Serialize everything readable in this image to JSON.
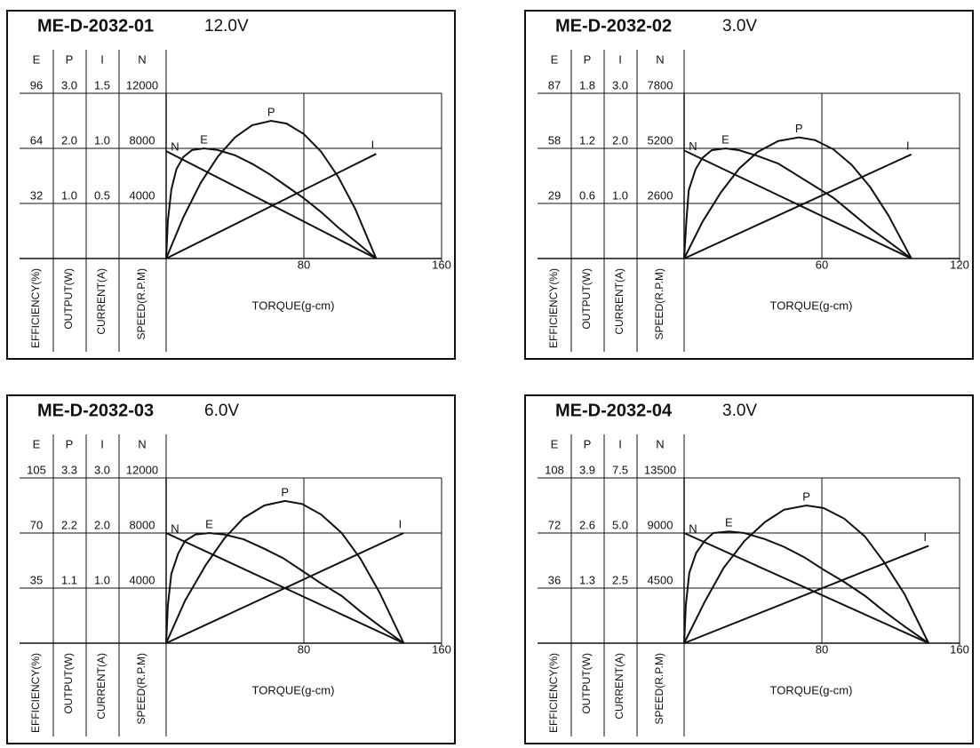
{
  "chart_data": [
    {
      "type": "line",
      "title": "ME-D-2032-01",
      "subtitle": "12.0V",
      "axes": [
        {
          "name": "E",
          "label": "EFFICIENCY(%)",
          "ylim": [
            0,
            96
          ],
          "yticks": [
            32,
            64,
            96
          ]
        },
        {
          "name": "P",
          "label": "OUTPUT(W)",
          "ylim": [
            0,
            3
          ],
          "yticks": [
            {
              "value": 1,
              "label": "1.0"
            },
            {
              "value": 2,
              "label": "2.0"
            },
            {
              "value": 3,
              "label": "3.0"
            }
          ]
        },
        {
          "name": "I",
          "label": "CURRENT(A)",
          "ylim": [
            0,
            1.5
          ],
          "yticks": [
            0.5,
            {
              "value": 1,
              "label": "1.0"
            },
            1.5
          ]
        },
        {
          "name": "N",
          "label": "SPEED(R.P.M)",
          "ylim": [
            0,
            12000
          ],
          "yticks": [
            4000,
            8000,
            12000
          ]
        }
      ],
      "xlim": [
        0,
        160
      ],
      "xticks": [
        80,
        160
      ],
      "xlabel": "TORQUE(g-cm)",
      "grid": true,
      "series": [
        {
          "name": "N",
          "color": "#111111",
          "x": [
            0,
            122
          ],
          "values": [
            7800,
            0
          ]
        },
        {
          "name": "E",
          "color": "#111111",
          "x": [
            0,
            1,
            3,
            6,
            10,
            15,
            22,
            30,
            40,
            50,
            60,
            70,
            80,
            90,
            100,
            110,
            122
          ],
          "values": [
            0,
            22,
            40,
            52,
            59,
            63,
            64,
            63,
            60,
            55,
            49,
            42,
            35,
            27,
            18,
            10,
            0
          ]
        },
        {
          "name": "P",
          "color": "#111111",
          "x": [
            0,
            10,
            20,
            30,
            40,
            50,
            61,
            70,
            80,
            90,
            100,
            110,
            122
          ],
          "values": [
            0,
            0.75,
            1.37,
            1.85,
            2.2,
            2.42,
            2.5,
            2.45,
            2.26,
            1.94,
            1.48,
            0.89,
            0
          ]
        },
        {
          "name": "I",
          "color": "#111111",
          "x": [
            0,
            122
          ],
          "values": [
            0,
            0.95
          ]
        }
      ]
    },
    {
      "type": "line",
      "title": "ME-D-2032-02",
      "subtitle": "3.0V",
      "axes": [
        {
          "name": "E",
          "label": "EFFICIENCY(%)",
          "ylim": [
            0,
            87
          ],
          "yticks": [
            29,
            58,
            87
          ]
        },
        {
          "name": "P",
          "label": "OUTPUT(W)",
          "ylim": [
            0,
            1.8
          ],
          "yticks": [
            0.6,
            1.2,
            1.8
          ]
        },
        {
          "name": "I",
          "label": "CURRENT(A)",
          "ylim": [
            0,
            3
          ],
          "yticks": [
            {
              "value": 1,
              "label": "1.0"
            },
            {
              "value": 2,
              "label": "2.0"
            },
            {
              "value": 3,
              "label": "3.0"
            }
          ]
        },
        {
          "name": "N",
          "label": "SPEED(R.P.M)",
          "ylim": [
            0,
            7800
          ],
          "yticks": [
            2600,
            5200,
            7800
          ]
        }
      ],
      "xlim": [
        0,
        120
      ],
      "xticks": [
        60,
        120
      ],
      "xlabel": "TORQUE(g-cm)",
      "grid": true,
      "series": [
        {
          "name": "N",
          "color": "#111111",
          "x": [
            0,
            99
          ],
          "values": [
            5100,
            0
          ]
        },
        {
          "name": "E",
          "color": "#111111",
          "x": [
            0,
            1,
            2,
            5,
            8,
            12,
            18,
            24,
            32,
            41,
            49,
            57,
            65,
            73,
            81,
            89,
            99
          ],
          "values": [
            0,
            20,
            36,
            47,
            53,
            57,
            58,
            57,
            54,
            50,
            44,
            38,
            32,
            24,
            16,
            9,
            0
          ]
        },
        {
          "name": "P",
          "color": "#111111",
          "x": [
            0,
            8,
            16,
            24,
            32,
            41,
            50,
            57,
            65,
            73,
            81,
            89,
            99
          ],
          "values": [
            0,
            0.4,
            0.72,
            0.98,
            1.16,
            1.28,
            1.32,
            1.29,
            1.19,
            1.02,
            0.78,
            0.47,
            0
          ]
        },
        {
          "name": "I",
          "color": "#111111",
          "x": [
            0,
            99
          ],
          "values": [
            0,
            1.89
          ]
        }
      ]
    },
    {
      "type": "line",
      "title": "ME-D-2032-03",
      "subtitle": "6.0V",
      "axes": [
        {
          "name": "E",
          "label": "EFFICIENCY(%)",
          "ylim": [
            0,
            105
          ],
          "yticks": [
            35,
            70,
            105
          ]
        },
        {
          "name": "P",
          "label": "OUTPUT(W)",
          "ylim": [
            0,
            3.3
          ],
          "yticks": [
            1.1,
            2.2,
            3.3
          ]
        },
        {
          "name": "I",
          "label": "CURRENT(A)",
          "ylim": [
            0,
            3
          ],
          "yticks": [
            {
              "value": 1,
              "label": "1.0"
            },
            {
              "value": 2,
              "label": "2.0"
            },
            {
              "value": 3,
              "label": "3.0"
            }
          ]
        },
        {
          "name": "N",
          "label": "SPEED(R.P.M)",
          "ylim": [
            0,
            12000
          ],
          "yticks": [
            4000,
            8000,
            12000
          ]
        }
      ],
      "xlim": [
        0,
        160
      ],
      "xticks": [
        80,
        160
      ],
      "xlabel": "TORQUE(g-cm)",
      "grid": true,
      "series": [
        {
          "name": "N",
          "color": "#111111",
          "x": [
            0,
            138
          ],
          "values": [
            8000,
            0
          ]
        },
        {
          "name": "E",
          "color": "#111111",
          "x": [
            0,
            1,
            3,
            7,
            11,
            17,
            25,
            34,
            45,
            57,
            68,
            79,
            90,
            102,
            113,
            124,
            138
          ],
          "values": [
            0,
            24,
            44,
            57,
            65,
            69,
            70,
            69,
            66,
            60,
            54,
            46,
            38,
            30,
            20,
            11,
            0
          ]
        },
        {
          "name": "P",
          "color": "#111111",
          "x": [
            0,
            11,
            23,
            34,
            45,
            57,
            69,
            79,
            90,
            102,
            113,
            124,
            138
          ],
          "values": [
            0,
            0.85,
            1.56,
            2.1,
            2.5,
            2.75,
            2.84,
            2.78,
            2.57,
            2.2,
            1.68,
            1.01,
            0
          ]
        },
        {
          "name": "I",
          "color": "#111111",
          "x": [
            0,
            138
          ],
          "values": [
            0,
            2
          ]
        }
      ]
    },
    {
      "type": "line",
      "title": "ME-D-2032-04",
      "subtitle": "3.0V",
      "axes": [
        {
          "name": "E",
          "label": "EFFICIENCY(%)",
          "ylim": [
            0,
            108
          ],
          "yticks": [
            36,
            72,
            108
          ]
        },
        {
          "name": "P",
          "label": "OUTPUT(W)",
          "ylim": [
            0,
            3.9
          ],
          "yticks": [
            1.3,
            2.6,
            3.9
          ]
        },
        {
          "name": "I",
          "label": "CURRENT(A)",
          "ylim": [
            0,
            7.5
          ],
          "yticks": [
            2.5,
            {
              "value": 5,
              "label": "5.0"
            },
            7.5
          ]
        },
        {
          "name": "N",
          "label": "SPEED(R.P.M)",
          "ylim": [
            0,
            13500
          ],
          "yticks": [
            4500,
            9000,
            13500
          ]
        }
      ],
      "xlim": [
        0,
        160
      ],
      "xticks": [
        80,
        160
      ],
      "xlabel": "TORQUE(g-cm)",
      "grid": true,
      "series": [
        {
          "name": "N",
          "color": "#111111",
          "x": [
            0,
            142
          ],
          "values": [
            9000,
            0
          ]
        },
        {
          "name": "E",
          "color": "#111111",
          "x": [
            0,
            1,
            3,
            7,
            12,
            17,
            26,
            35,
            47,
            58,
            70,
            81,
            93,
            105,
            116,
            128,
            142
          ],
          "values": [
            0,
            25,
            46,
            59,
            67,
            72,
            73,
            72,
            68,
            63,
            56,
            48,
            40,
            31,
            21,
            11,
            0
          ]
        },
        {
          "name": "P",
          "color": "#111111",
          "x": [
            0,
            12,
            23,
            35,
            47,
            58,
            71,
            81,
            93,
            105,
            116,
            128,
            142
          ],
          "values": [
            0,
            0.98,
            1.78,
            2.41,
            2.86,
            3.15,
            3.25,
            3.19,
            2.94,
            2.52,
            1.92,
            1.16,
            0
          ]
        },
        {
          "name": "I",
          "color": "#111111",
          "x": [
            0,
            142
          ],
          "values": [
            0,
            4.42
          ]
        }
      ]
    }
  ]
}
